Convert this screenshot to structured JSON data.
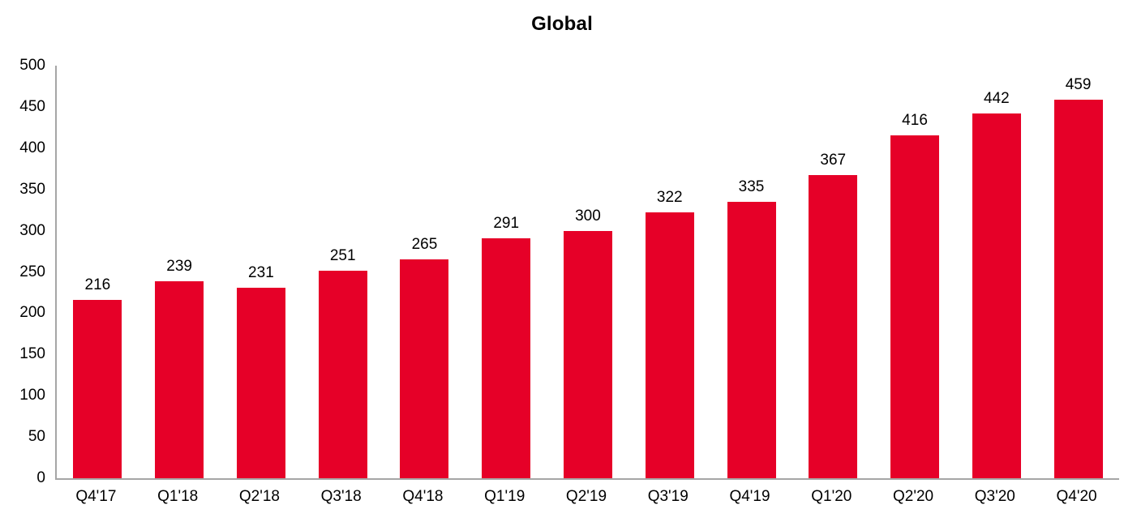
{
  "chart_data": {
    "type": "bar",
    "title": "Global",
    "categories": [
      "Q4'17",
      "Q1'18",
      "Q2'18",
      "Q3'18",
      "Q4'18",
      "Q1'19",
      "Q2'19",
      "Q3'19",
      "Q4'19",
      "Q1'20",
      "Q2'20",
      "Q3'20",
      "Q4'20"
    ],
    "values": [
      216,
      239,
      231,
      251,
      265,
      291,
      300,
      322,
      335,
      367,
      416,
      442,
      459
    ],
    "xlabel": "",
    "ylabel": "",
    "ylim": [
      0,
      500
    ],
    "yticks": [
      0,
      50,
      100,
      150,
      200,
      250,
      300,
      350,
      400,
      450,
      500
    ],
    "grid": false,
    "legend": false,
    "data_labels_shown": true,
    "colors": {
      "bar": "#e60028",
      "axis_line": "#a6a6a6",
      "text": "#000000",
      "background": "#ffffff"
    }
  }
}
